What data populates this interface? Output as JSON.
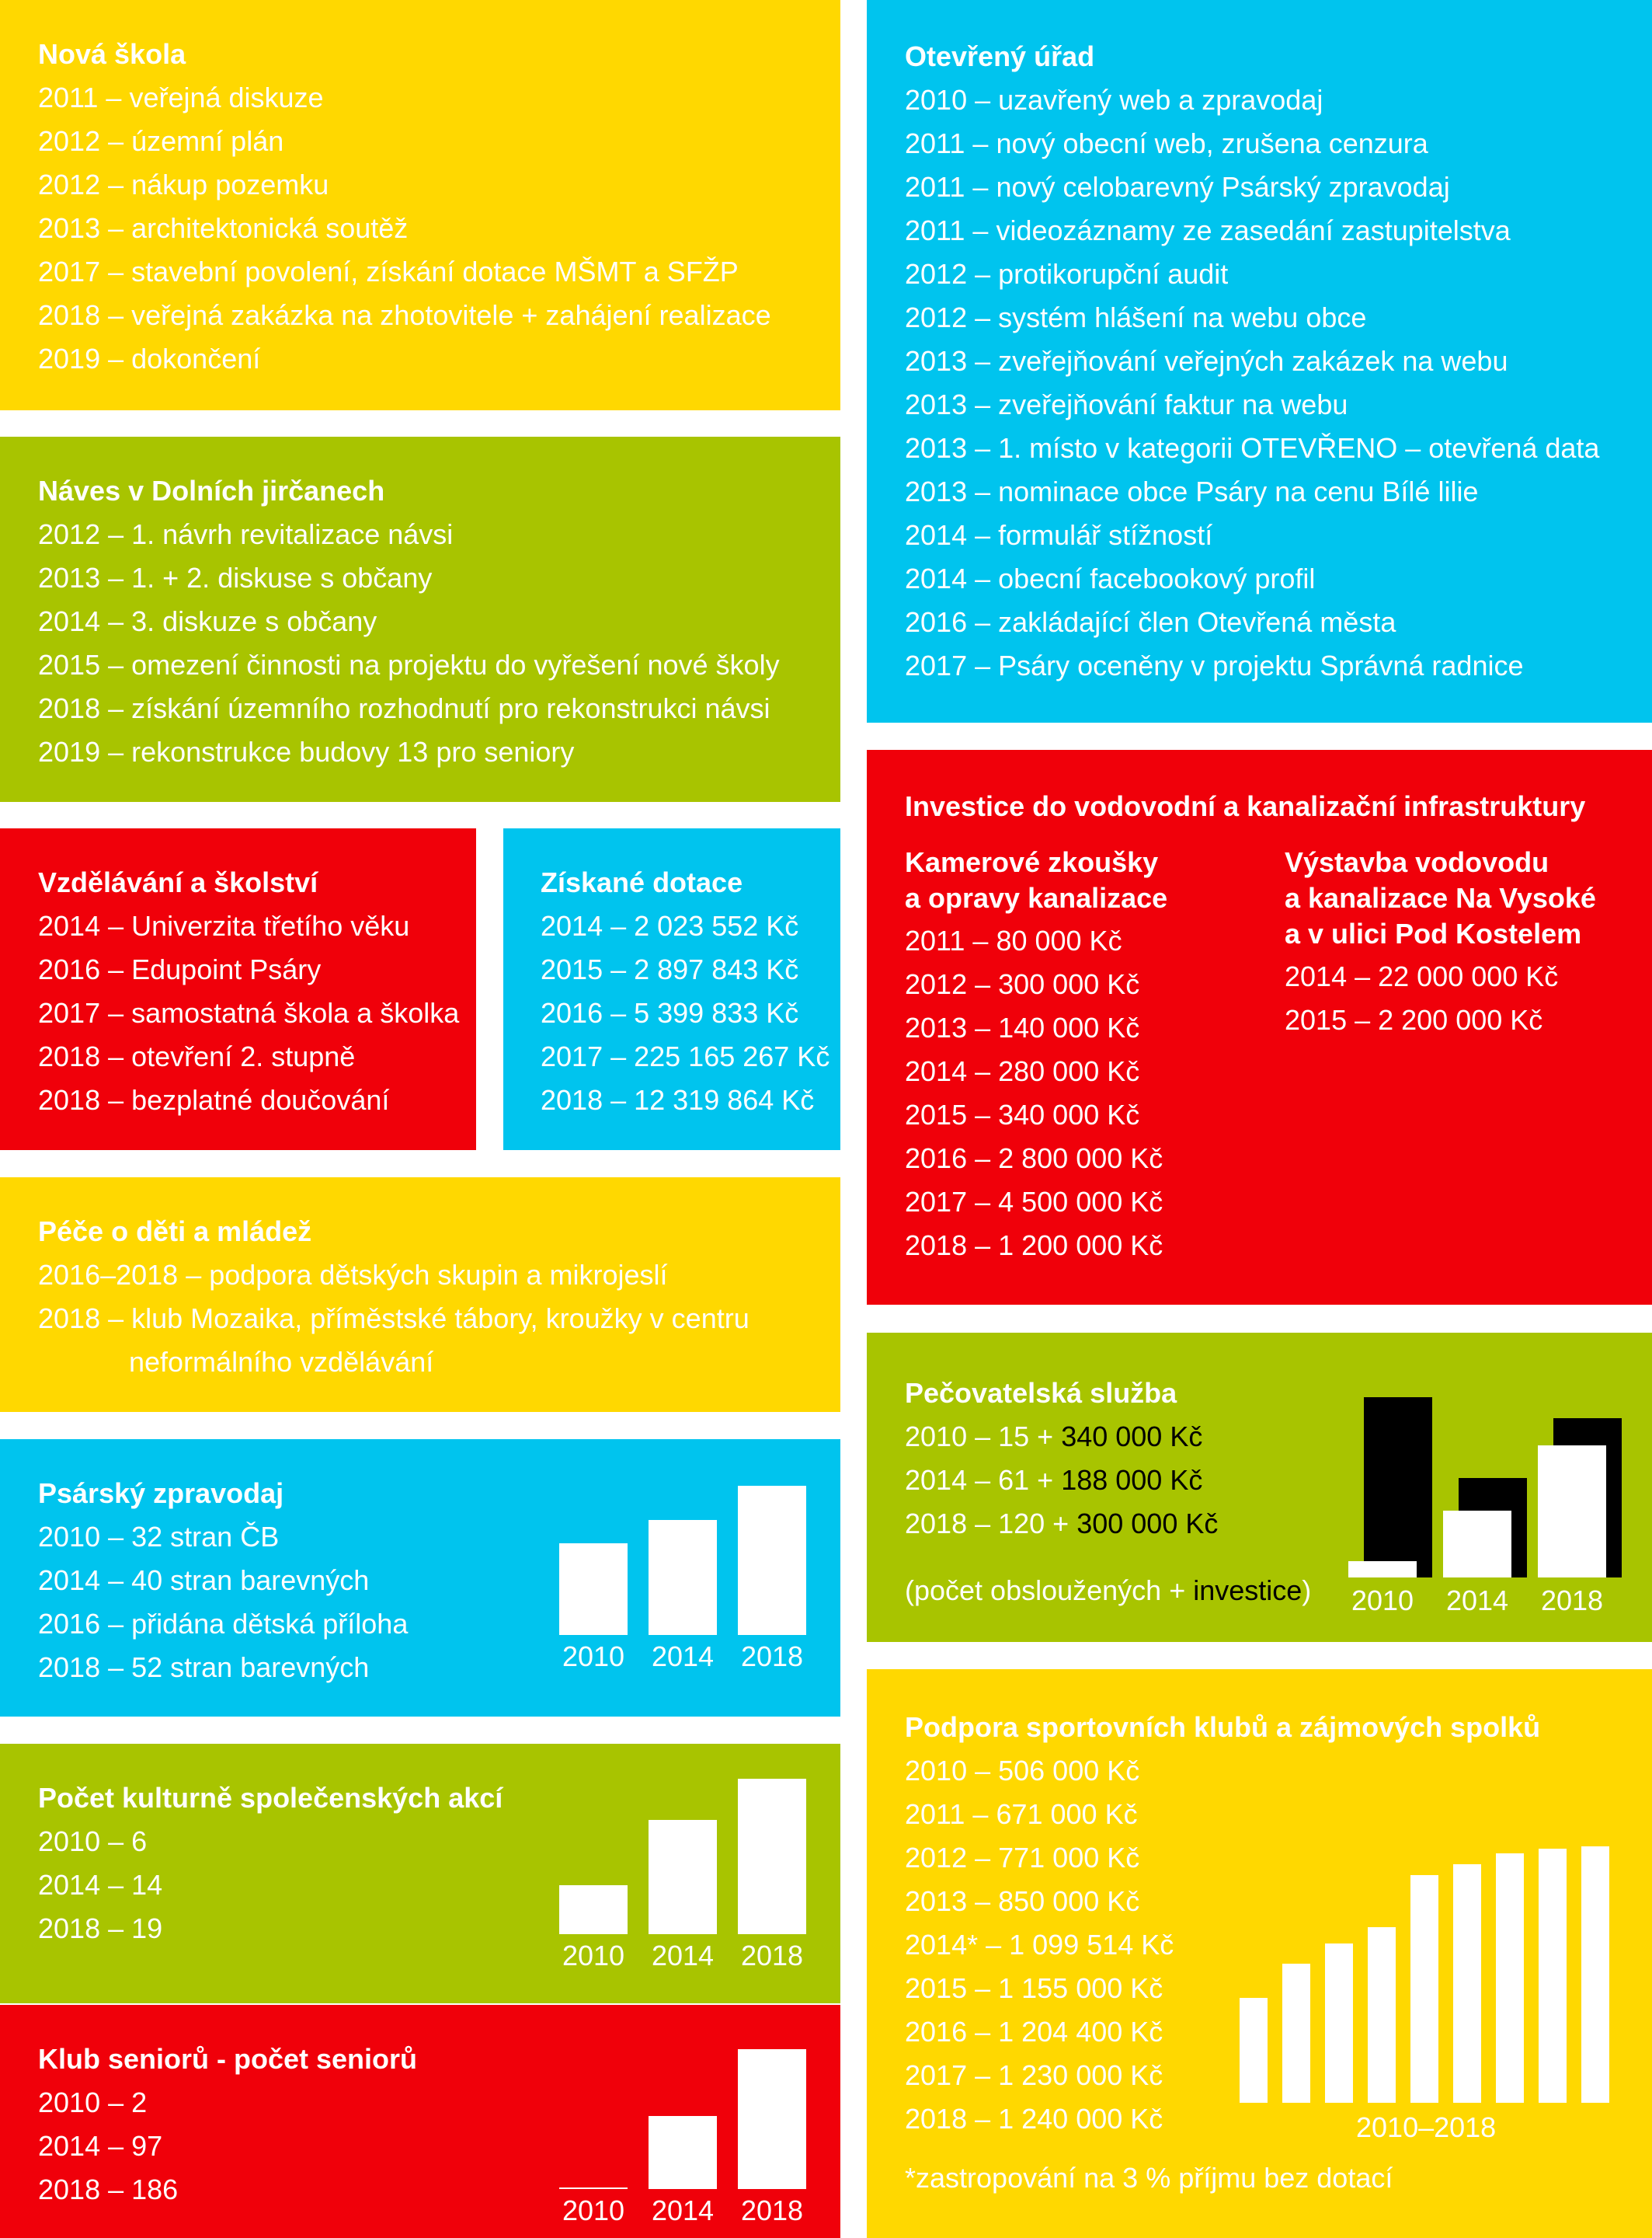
{
  "nova_skola": {
    "title": "Nová škola",
    "items": [
      "2011 – veřejná diskuze",
      "2012 – územní plán",
      "2012 – nákup pozemku",
      "2013 – architektonická soutěž",
      "2017 – stavební povolení, získání dotace MŠMT a SFŽP",
      "2018 – veřejná zakázka na zhotovitele + zahájení realizace",
      "2019 – dokončení"
    ],
    "color": "#FFD800"
  },
  "naves": {
    "title": "Náves v Dolních jirčanech",
    "items": [
      "2012 – 1. návrh revitalizace návsi",
      "2013 – 1. + 2. diskuse s občany",
      "2014 – 3. diskuze s občany",
      "2015 – omezení činnosti na projektu do vyřešení nové školy",
      "2018 – získání územního rozhodnutí pro rekonstrukci návsi",
      "2019 – rekonstrukce budovy 13 pro seniory"
    ],
    "color": "#A8C400"
  },
  "vzdelavani": {
    "title": "Vzdělávání a školství",
    "items": [
      "2014 – Univerzita třetího věku",
      "2016 – Edupoint Psáry",
      "2017 – samostatná škola a školka",
      "2018 – otevření 2. stupně",
      "2018 – bezplatné doučování"
    ],
    "color": "#F0000A"
  },
  "dotace": {
    "title": "Získané dotace",
    "items": [
      "2014 – 2 023 552 Kč",
      "2015 – 2 897 843 Kč",
      "2016 – 5 399 833 Kč",
      "2017 – 225 165 267 Kč",
      "2018 – 12 319 864 Kč"
    ],
    "color": "#00C4EE"
  },
  "pece": {
    "title": "Péče o děti a mládež",
    "line1": "2016–2018 – podpora dětských skupin a mikrojeslí",
    "line2": "2018 – klub Mozaika, příměstské tábory, kroužky v centru",
    "line3": "neformálního vzdělávání"
  },
  "zpravodaj": {
    "title": "Psárský zpravodaj",
    "items": [
      "2010 – 32 stran ČB",
      "2014 – 40 stran barevných",
      "2016 – přidána dětská příloha",
      "2018 – 52 stran barevných"
    ],
    "chart_data": {
      "type": "bar",
      "categories": [
        "2010",
        "2014",
        "2018"
      ],
      "values": [
        32,
        40,
        52
      ]
    }
  },
  "kultura": {
    "title": "Počet kulturně společenských akcí",
    "items": [
      "2010 – 6",
      "2014 – 14",
      "2018 – 19"
    ],
    "chart_data": {
      "type": "bar",
      "categories": [
        "2010",
        "2014",
        "2018"
      ],
      "values": [
        6,
        14,
        19
      ]
    }
  },
  "seniori": {
    "title": "Klub seniorů - počet seniorů",
    "items": [
      "2010 – 2",
      "2014 – 97",
      "2018 – 186"
    ],
    "chart_data": {
      "type": "bar",
      "categories": [
        "2010",
        "2014",
        "2018"
      ],
      "values": [
        2,
        97,
        186
      ]
    }
  },
  "otevreny_urad": {
    "title": "Otevřený úřad",
    "items": [
      "2010 – uzavřený web a zpravodaj",
      "2011 – nový obecní web, zrušena cenzura",
      "2011 – nový celobarevný Psárský zpravodaj",
      "2011 – videozáznamy ze zasedání zastupitelstva",
      "2012 – protikorupční audit",
      "2012 – systém hlášení na webu obce",
      "2013 – zveřejňování veřejných zakázek na webu",
      "2013 – zveřejňování faktur na webu",
      "2013 – 1. místo v kategorii OTEVŘENO – otevřená data",
      "2013 – nominace obce Psáry na cenu Bílé lilie",
      "2014 – formulář stížností",
      "2014 – obecní facebookový profil",
      "2016 – zakládající člen Otevřená města",
      "2017 – Psáry oceněny v projektu Správná radnice"
    ],
    "color": "#00C4EE"
  },
  "investice": {
    "title": "Investice do vodovodní a kanalizační infrastruktury",
    "left_title": "Kamerové zkoušky\na opravy kanalizace",
    "left_items": [
      "2011 – 80 000 Kč",
      "2012 – 300 000 Kč",
      "2013 – 140 000 Kč",
      "2014 – 280 000 Kč",
      "2015 – 340 000 Kč",
      "2016 – 2 800 000 Kč",
      "2017 – 4 500 000 Kč",
      "2018 – 1 200 000 Kč"
    ],
    "right_title": "Výstavba vodovodu\na kanalizace Na Vysoké\na v ulici Pod Kostelem",
    "right_items": [
      "2014 – 22 000 000 Kč",
      "2015 – 2 200 000 Kč"
    ]
  },
  "pecovatelska": {
    "title": "Pečovatelská služba",
    "rows": [
      {
        "lead": "2010 – 15 + ",
        "invest": "340 000 Kč"
      },
      {
        "lead": "2014 – 61 + ",
        "invest": "188 000 Kč"
      },
      {
        "lead": "2018 – 120 + ",
        "invest": "300 000 Kč"
      }
    ],
    "note_lead": "(počet obsloužených + ",
    "note_invest": "investice",
    "note_tail": ")",
    "chart_data": {
      "type": "bar",
      "categories": [
        "2010",
        "2014",
        "2018"
      ],
      "series": [
        {
          "name": "počet obsloužených",
          "values": [
            15,
            61,
            120
          ],
          "color": "#ffffff"
        },
        {
          "name": "investice",
          "values": [
            340000,
            188000,
            300000
          ],
          "color": "#000000"
        }
      ]
    }
  },
  "sport": {
    "title": "Podpora sportovních klubů a zájmových spolků",
    "items": [
      "2010 – 506 000 Kč",
      "2011 – 671 000 Kč",
      "2012 – 771 000 Kč",
      "2013 – 850 000 Kč",
      "2014* – 1 099 514 Kč",
      "2015 – 1 155 000 Kč",
      "2016 – 1 204 400 Kč",
      "2017 – 1 230 000 Kč",
      "2018 – 1 240 000 Kč"
    ],
    "footnote": "*zastropování na 3 % příjmu bez dotací",
    "chart_data": {
      "type": "bar",
      "xlabel": "2010–2018",
      "categories": [
        "2010",
        "2011",
        "2012",
        "2013",
        "2014",
        "2015",
        "2016",
        "2017",
        "2018"
      ],
      "values": [
        506000,
        671000,
        771000,
        850000,
        1099514,
        1155000,
        1204400,
        1230000,
        1240000
      ]
    }
  }
}
